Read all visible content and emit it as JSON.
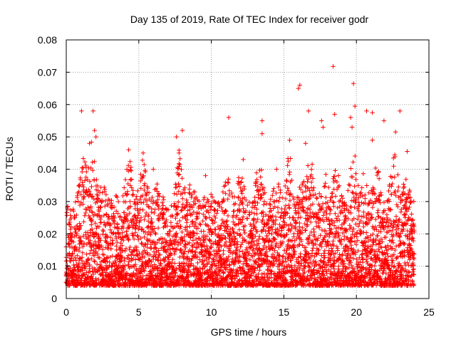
{
  "chart_data": {
    "type": "scatter",
    "title": "Day 135 of 2019, Rate Of TEC Index for receiver godr",
    "xlabel": "GPS time / hours",
    "ylabel": "ROTI / TECUs",
    "xlim": [
      0,
      25
    ],
    "ylim": [
      0,
      0.08
    ],
    "x_ticks": [
      0,
      5,
      10,
      15,
      20,
      25
    ],
    "x_tick_labels": [
      "0",
      "5",
      "10",
      "15",
      "20",
      "25"
    ],
    "y_ticks": [
      0,
      0.01,
      0.02,
      0.03,
      0.04,
      0.05,
      0.06,
      0.07,
      0.08
    ],
    "y_tick_labels": [
      "0",
      "0.01",
      "0.02",
      "0.03",
      "0.04",
      "0.05",
      "0.06",
      "0.07",
      "0.08"
    ],
    "grid": true,
    "marker": "+",
    "marker_color": "#ff0000",
    "sampling": {
      "x_start": 0,
      "x_end": 24,
      "x_step": 0.0333,
      "baseline_min": 0.004,
      "baseline_max": 0.03,
      "points_per_epoch": 7,
      "seed": 135
    },
    "series": [
      {
        "name": "ROTI",
        "outliers": [
          {
            "x": 1.05,
            "y": 0.058
          },
          {
            "x": 1.85,
            "y": 0.058
          },
          {
            "x": 1.95,
            "y": 0.052
          },
          {
            "x": 1.6,
            "y": 0.048
          },
          {
            "x": 2.05,
            "y": 0.05
          },
          {
            "x": 4.3,
            "y": 0.046
          },
          {
            "x": 5.3,
            "y": 0.045
          },
          {
            "x": 7.6,
            "y": 0.05
          },
          {
            "x": 8.0,
            "y": 0.052
          },
          {
            "x": 11.2,
            "y": 0.056
          },
          {
            "x": 13.5,
            "y": 0.055
          },
          {
            "x": 13.5,
            "y": 0.051
          },
          {
            "x": 15.4,
            "y": 0.049
          },
          {
            "x": 16.0,
            "y": 0.065
          },
          {
            "x": 16.1,
            "y": 0.066
          },
          {
            "x": 16.5,
            "y": 0.048
          },
          {
            "x": 16.7,
            "y": 0.058
          },
          {
            "x": 17.6,
            "y": 0.055
          },
          {
            "x": 17.7,
            "y": 0.053
          },
          {
            "x": 18.4,
            "y": 0.0718
          },
          {
            "x": 18.5,
            "y": 0.057
          },
          {
            "x": 19.6,
            "y": 0.056
          },
          {
            "x": 19.7,
            "y": 0.053
          },
          {
            "x": 19.8,
            "y": 0.0665
          },
          {
            "x": 19.9,
            "y": 0.0595
          },
          {
            "x": 20.7,
            "y": 0.058
          },
          {
            "x": 21.1,
            "y": 0.0575
          },
          {
            "x": 21.1,
            "y": 0.049
          },
          {
            "x": 21.9,
            "y": 0.055
          },
          {
            "x": 22.7,
            "y": 0.0515
          },
          {
            "x": 23.0,
            "y": 0.058
          },
          {
            "x": 23.5,
            "y": 0.0455
          },
          {
            "x": 9.6,
            "y": 0.038
          },
          {
            "x": 12.2,
            "y": 0.043
          },
          {
            "x": 14.5,
            "y": 0.04
          },
          {
            "x": 6.0,
            "y": 0.04
          }
        ]
      }
    ],
    "activity_peaks": [
      {
        "x": 1.2,
        "max": 0.047
      },
      {
        "x": 1.8,
        "max": 0.05
      },
      {
        "x": 2.5,
        "max": 0.037
      },
      {
        "x": 3.5,
        "max": 0.032
      },
      {
        "x": 4.3,
        "max": 0.044
      },
      {
        "x": 5.3,
        "max": 0.044
      },
      {
        "x": 6.3,
        "max": 0.036
      },
      {
        "x": 7.8,
        "max": 0.047
      },
      {
        "x": 8.6,
        "max": 0.036
      },
      {
        "x": 9.8,
        "max": 0.034
      },
      {
        "x": 11.1,
        "max": 0.04
      },
      {
        "x": 12.0,
        "max": 0.04
      },
      {
        "x": 13.3,
        "max": 0.044
      },
      {
        "x": 14.5,
        "max": 0.037
      },
      {
        "x": 15.4,
        "max": 0.046
      },
      {
        "x": 16.3,
        "max": 0.038
      },
      {
        "x": 16.8,
        "max": 0.046
      },
      {
        "x": 17.8,
        "max": 0.04
      },
      {
        "x": 18.6,
        "max": 0.042
      },
      {
        "x": 19.8,
        "max": 0.047
      },
      {
        "x": 20.5,
        "max": 0.04
      },
      {
        "x": 21.4,
        "max": 0.043
      },
      {
        "x": 22.6,
        "max": 0.046
      },
      {
        "x": 23.4,
        "max": 0.038
      }
    ]
  }
}
